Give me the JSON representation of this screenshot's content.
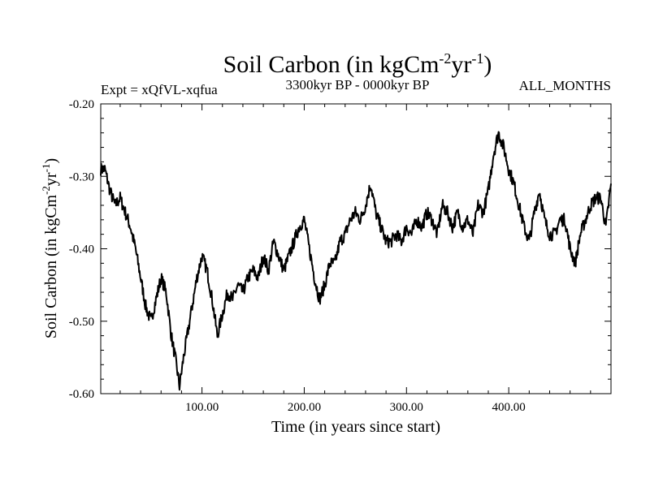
{
  "chart_data": {
    "type": "line",
    "title": {
      "main": "Soil Carbon (in kgCm",
      "sup1": "-2",
      "mid": "yr",
      "sup2": "-1",
      "end": ")"
    },
    "subtitle_left": "Expt = xQfVL-xqfua",
    "subtitle_center": "3300kyr BP - 0000kyr BP",
    "subtitle_right": "ALL_MONTHS",
    "xlabel": "Time (in years since start)",
    "ylabel": {
      "main": "Soil Carbon (in kgCm",
      "sup1": "-2",
      "mid": "yr",
      "sup2": "-1",
      "end": ")"
    },
    "xlim": [
      1,
      500
    ],
    "ylim": [
      -0.6,
      -0.2
    ],
    "x_ticks": [
      100,
      200,
      300,
      400
    ],
    "x_tick_labels": [
      "100.00",
      "200.00",
      "300.00",
      "400.00"
    ],
    "y_ticks": [
      -0.6,
      -0.5,
      -0.4,
      -0.3,
      -0.2
    ],
    "y_tick_labels": [
      "-0.60",
      "-0.50",
      "-0.40",
      "-0.30",
      "-0.20"
    ],
    "series": [
      {
        "name": "Soil Carbon",
        "x": [
          1,
          5,
          10,
          15,
          20,
          25,
          30,
          35,
          40,
          45,
          50,
          55,
          60,
          65,
          70,
          75,
          78,
          82,
          88,
          95,
          100,
          105,
          110,
          115,
          120,
          125,
          130,
          135,
          140,
          145,
          150,
          155,
          160,
          165,
          170,
          175,
          180,
          185,
          190,
          195,
          200,
          205,
          210,
          215,
          220,
          225,
          230,
          235,
          240,
          245,
          250,
          255,
          260,
          265,
          270,
          275,
          280,
          285,
          290,
          295,
          300,
          305,
          310,
          315,
          320,
          325,
          330,
          335,
          340,
          345,
          350,
          355,
          360,
          365,
          370,
          375,
          380,
          385,
          390,
          395,
          400,
          405,
          410,
          415,
          420,
          425,
          430,
          435,
          440,
          445,
          450,
          455,
          460,
          465,
          470,
          475,
          480,
          485,
          490,
          495,
          500
        ],
        "values": [
          -0.29,
          -0.29,
          -0.32,
          -0.34,
          -0.33,
          -0.35,
          -0.37,
          -0.4,
          -0.44,
          -0.48,
          -0.5,
          -0.47,
          -0.44,
          -0.46,
          -0.52,
          -0.56,
          -0.59,
          -0.55,
          -0.5,
          -0.44,
          -0.41,
          -0.43,
          -0.47,
          -0.52,
          -0.49,
          -0.46,
          -0.47,
          -0.45,
          -0.46,
          -0.44,
          -0.43,
          -0.44,
          -0.41,
          -0.43,
          -0.39,
          -0.41,
          -0.43,
          -0.41,
          -0.39,
          -0.37,
          -0.36,
          -0.4,
          -0.44,
          -0.47,
          -0.45,
          -0.42,
          -0.42,
          -0.39,
          -0.38,
          -0.36,
          -0.35,
          -0.36,
          -0.34,
          -0.31,
          -0.35,
          -0.37,
          -0.39,
          -0.39,
          -0.38,
          -0.39,
          -0.37,
          -0.38,
          -0.36,
          -0.37,
          -0.35,
          -0.36,
          -0.38,
          -0.34,
          -0.35,
          -0.37,
          -0.35,
          -0.37,
          -0.36,
          -0.38,
          -0.34,
          -0.35,
          -0.32,
          -0.27,
          -0.24,
          -0.26,
          -0.29,
          -0.31,
          -0.34,
          -0.37,
          -0.39,
          -0.35,
          -0.32,
          -0.36,
          -0.38,
          -0.38,
          -0.36,
          -0.36,
          -0.4,
          -0.42,
          -0.38,
          -0.36,
          -0.34,
          -0.33,
          -0.33,
          -0.37,
          -0.31
        ]
      }
    ]
  }
}
